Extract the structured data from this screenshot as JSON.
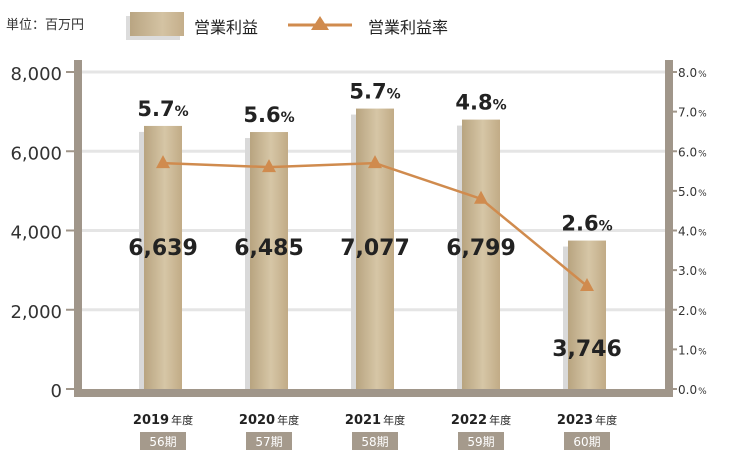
{
  "unit_label": "単位：百万円",
  "legend": {
    "bar_label": "営業利益",
    "line_label": "営業利益率"
  },
  "colors": {
    "bar": "#c9b593",
    "bar_shadow": "#d9d9d9",
    "line": "#d08b4e",
    "axis": "#a0968a",
    "grid": "#e5e5e5",
    "period_badge": "#a59a8c"
  },
  "chart_data": {
    "type": "bar",
    "categories": [
      "2019",
      "2020",
      "2021",
      "2022",
      "2023"
    ],
    "category_suffix": "年度",
    "periods": [
      "56期",
      "57期",
      "58期",
      "59期",
      "60期"
    ],
    "series": [
      {
        "values": [
          6639,
          6485,
          7077,
          6799,
          3746
        ],
        "value_labels": [
          "6,639",
          "6,485",
          "7,077",
          "6,799",
          "3,746"
        ],
        "axis": "left",
        "type": "bar"
      },
      {
        "values": [
          5.7,
          5.6,
          5.7,
          4.8,
          2.6
        ],
        "value_labels": [
          "5.7",
          "5.6",
          "5.7",
          "4.8",
          "2.6"
        ],
        "value_suffix": "%",
        "axis": "right",
        "type": "line"
      }
    ],
    "y_left": {
      "lim": [
        0,
        8000
      ],
      "ticks": [
        0,
        2000,
        4000,
        6000,
        8000
      ],
      "tick_labels": [
        "0",
        "2,000",
        "4,000",
        "6,000",
        "8,000"
      ]
    },
    "y_right": {
      "lim": [
        0,
        8
      ],
      "ticks": [
        0,
        1,
        2,
        3,
        4,
        5,
        6,
        7,
        8
      ],
      "tick_labels": [
        "0.0",
        "1.0",
        "2.0",
        "3.0",
        "4.0",
        "5.0",
        "6.0",
        "7.0",
        "8.0"
      ],
      "tick_suffix": "%"
    },
    "grid": true,
    "legend_position": "top"
  }
}
